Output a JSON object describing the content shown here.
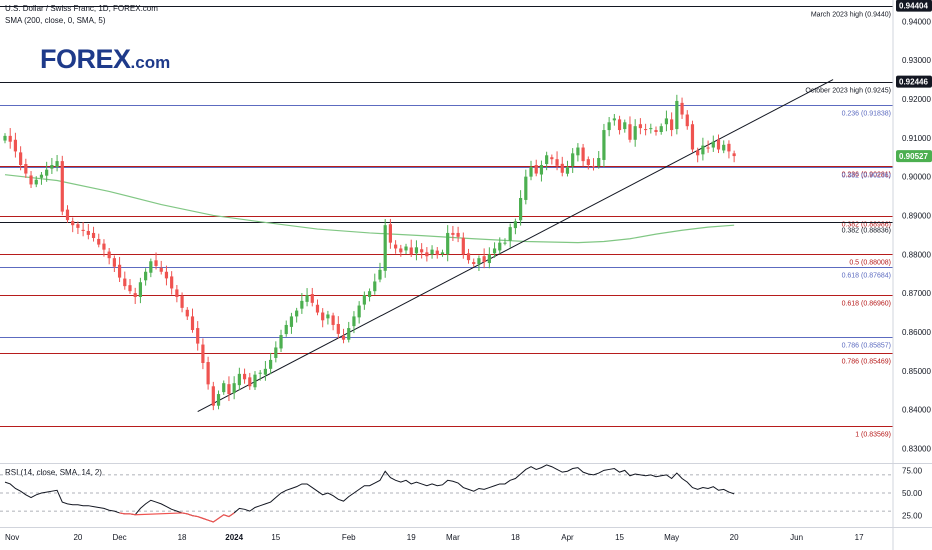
{
  "header": {
    "title": "U.S. Dollar / Swiss Franc, 1D, FOREX.com",
    "indicator": "SMA (200, close, 0, SMA, 5)",
    "rsi_label": "RSI (14, close, SMA, 14, 2)"
  },
  "logo": {
    "text": "FOREX",
    "suffix": ".com",
    "color": "#1e3a8a",
    "accent": "#7ac943"
  },
  "colors": {
    "up": "#26a69a",
    "up_bar": "#4caf50",
    "down": "#ef5350",
    "sma": "#81c784",
    "rsi": "#131722",
    "red_line": "#b71c1c",
    "blue_line": "#5c6bc0",
    "black_line": "#131722",
    "label_bg": "#131722",
    "price_tag": "#4caf50"
  },
  "chart_data": {
    "type": "candlestick",
    "y_range": [
      0.8265,
      0.9455
    ],
    "y_ticks": [
      {
        "value": 0.94,
        "label": "0.94000"
      },
      {
        "value": 0.93,
        "label": "0.93000"
      },
      {
        "value": 0.92,
        "label": "0.92000"
      },
      {
        "value": 0.91,
        "label": "0.91000"
      },
      {
        "value": 0.9,
        "label": "0.90000"
      },
      {
        "value": 0.89,
        "label": "0.89000"
      },
      {
        "value": 0.88,
        "label": "0.88000"
      },
      {
        "value": 0.87,
        "label": "0.87000"
      },
      {
        "value": 0.86,
        "label": "0.86000"
      },
      {
        "value": 0.85,
        "label": "0.85000"
      },
      {
        "value": 0.84,
        "label": "0.84000"
      },
      {
        "value": 0.83,
        "label": "0.83000"
      }
    ],
    "x_ticks": [
      {
        "i": 0,
        "label": "Nov",
        "bold": false
      },
      {
        "i": 14,
        "label": "20",
        "bold": false
      },
      {
        "i": 22,
        "label": "Dec",
        "bold": false
      },
      {
        "i": 34,
        "label": "18",
        "bold": false
      },
      {
        "i": 44,
        "label": "2024",
        "bold": true
      },
      {
        "i": 52,
        "label": "15",
        "bold": false
      },
      {
        "i": 66,
        "label": "Feb",
        "bold": false
      },
      {
        "i": 78,
        "label": "19",
        "bold": false
      },
      {
        "i": 86,
        "label": "Mar",
        "bold": false
      },
      {
        "i": 98,
        "label": "18",
        "bold": false
      },
      {
        "i": 108,
        "label": "Apr",
        "bold": false
      },
      {
        "i": 118,
        "label": "15",
        "bold": false
      },
      {
        "i": 128,
        "label": "May",
        "bold": false
      },
      {
        "i": 140,
        "label": "20",
        "bold": false
      },
      {
        "i": 152,
        "label": "Jun",
        "bold": false
      },
      {
        "i": 164,
        "label": "17",
        "bold": false
      }
    ],
    "n_slots": 173,
    "candle_count": 141,
    "closes": [
      0.9105,
      0.909,
      0.9065,
      0.903,
      0.9008,
      0.898,
      0.8992,
      0.9005,
      0.9018,
      0.903,
      0.904,
      0.891,
      0.8888,
      0.8875,
      0.8868,
      0.886,
      0.885,
      0.8842,
      0.8825,
      0.8812,
      0.879,
      0.8768,
      0.874,
      0.8718,
      0.8705,
      0.869,
      0.8728,
      0.8755,
      0.8782,
      0.877,
      0.8755,
      0.8738,
      0.8712,
      0.869,
      0.8662,
      0.864,
      0.8605,
      0.857,
      0.852,
      0.8465,
      0.841,
      0.844,
      0.8468,
      0.844,
      0.8468,
      0.8492,
      0.8478,
      0.846,
      0.849,
      0.8495,
      0.8505,
      0.8528,
      0.856,
      0.8592,
      0.8618,
      0.864,
      0.8655,
      0.868,
      0.8695,
      0.8675,
      0.865,
      0.863,
      0.8645,
      0.8618,
      0.8595,
      0.858,
      0.861,
      0.864,
      0.8668,
      0.8695,
      0.8705,
      0.873,
      0.876,
      0.8875,
      0.883,
      0.8815,
      0.8805,
      0.882,
      0.88,
      0.8818,
      0.8805,
      0.8795,
      0.8812,
      0.8798,
      0.8805,
      0.8855,
      0.885,
      0.8845,
      0.88,
      0.8785,
      0.8775,
      0.879,
      0.878,
      0.88,
      0.8815,
      0.883,
      0.883,
      0.887,
      0.8885,
      0.8945,
      0.9,
      0.9025,
      0.9008,
      0.903,
      0.9055,
      0.9045,
      0.9028,
      0.901,
      0.9025,
      0.906,
      0.9075,
      0.904,
      0.903,
      0.9025,
      0.9048,
      0.912,
      0.914,
      0.915,
      0.912,
      0.914,
      0.9095,
      0.913,
      0.9125,
      0.912,
      0.9125,
      0.9115,
      0.913,
      0.915,
      0.912,
      0.9195,
      0.916,
      0.913,
      0.907,
      0.9055,
      0.908,
      0.9075,
      0.909,
      0.907,
      0.9082,
      0.9065,
      0.9053
    ],
    "sma200": [
      [
        0,
        0.9005
      ],
      [
        10,
        0.899
      ],
      [
        20,
        0.8962
      ],
      [
        30,
        0.8928
      ],
      [
        40,
        0.89
      ],
      [
        50,
        0.8882
      ],
      [
        60,
        0.8865
      ],
      [
        70,
        0.8855
      ],
      [
        80,
        0.8848
      ],
      [
        90,
        0.884
      ],
      [
        100,
        0.8833
      ],
      [
        110,
        0.883
      ],
      [
        115,
        0.8833
      ],
      [
        120,
        0.884
      ],
      [
        125,
        0.8852
      ],
      [
        130,
        0.8862
      ],
      [
        135,
        0.887
      ],
      [
        140,
        0.8875
      ]
    ],
    "trendline": [
      [
        37,
        0.8395
      ],
      [
        159,
        0.925
      ]
    ],
    "rsi": {
      "range": [
        18,
        82
      ],
      "ticks": [
        {
          "value": 75,
          "label": "75.00"
        },
        {
          "value": 50,
          "label": "50.00"
        },
        {
          "value": 25,
          "label": "25.00"
        }
      ],
      "levels": [
        70,
        50,
        30
      ],
      "values": [
        62,
        60,
        55,
        52,
        48,
        45,
        48,
        50,
        51,
        52,
        53,
        40,
        38,
        37,
        37,
        36,
        36,
        35,
        34,
        33,
        31,
        30,
        28,
        27,
        27,
        26,
        33,
        38,
        42,
        40,
        38,
        35,
        32,
        30,
        28,
        27,
        25,
        24,
        22,
        20,
        18,
        22,
        26,
        24,
        28,
        33,
        32,
        30,
        34,
        36,
        38,
        40,
        45,
        50,
        53,
        55,
        57,
        60,
        60,
        56,
        52,
        48,
        50,
        47,
        43,
        41,
        46,
        50,
        54,
        58,
        58,
        61,
        64,
        74,
        67,
        64,
        62,
        64,
        60,
        62,
        60,
        58,
        60,
        58,
        59,
        64,
        63,
        61,
        56,
        54,
        52,
        55,
        54,
        56,
        58,
        60,
        60,
        64,
        66,
        71,
        76,
        79,
        76,
        78,
        81,
        79,
        76,
        73,
        74,
        77,
        78,
        73,
        71,
        70,
        72,
        75,
        76,
        77,
        73,
        75,
        69,
        71,
        70,
        69,
        70,
        68,
        69,
        70,
        66,
        72,
        66,
        62,
        56,
        54,
        56,
        55,
        57,
        53,
        54,
        51,
        49
      ]
    },
    "levels": [
      {
        "id": "mar23",
        "value": 0.944,
        "color": "#131722",
        "label": "March 2023 high (0.9440)",
        "label_color": "#131722"
      },
      {
        "id": "oct23",
        "value": 0.9245,
        "color": "#131722",
        "label": "October 2023 high (0.9245)",
        "label_color": "#131722"
      },
      {
        "id": "fib_b_236",
        "value": 0.91838,
        "color": "#5c6bc0",
        "label": "0.236 (0.91838)",
        "label_color": "#5c6bc0"
      },
      {
        "id": "fib_r_236",
        "value": 0.90281,
        "color": "#b71c1c",
        "label": "0.236 (0.90281)",
        "label_color": "#b71c1c"
      },
      {
        "id": "fib_b_382",
        "value": 0.90236,
        "color": "#5c6bc0",
        "label": "0.382 (0.90236)",
        "label_color": "#5c6bc0"
      },
      {
        "id": "fib_r_382",
        "value": 0.88986,
        "color": "#b71c1c",
        "label": "0.382 (0.88986)",
        "label_color": "#b71c1c"
      },
      {
        "id": "blk_382",
        "value": 0.88836,
        "color": "#131722",
        "label": "0.382 (0.88836)",
        "label_color": "#131722"
      },
      {
        "id": "fib_r_5",
        "value": 0.88008,
        "color": "#b71c1c",
        "label": "0.5 (0.88008)",
        "label_color": "#b71c1c"
      },
      {
        "id": "fib_b_618",
        "value": 0.87684,
        "color": "#5c6bc0",
        "label": "0.618 (0.87684)",
        "label_color": "#5c6bc0"
      },
      {
        "id": "fib_r_618",
        "value": 0.8696,
        "color": "#b71c1c",
        "label": "0.618 (0.86960)",
        "label_color": "#b71c1c"
      },
      {
        "id": "fib_b_786",
        "value": 0.85857,
        "color": "#5c6bc0",
        "label": "0.786 (0.85857)",
        "label_color": "#5c6bc0"
      },
      {
        "id": "fib_r_786",
        "value": 0.85469,
        "color": "#b71c1c",
        "label": "0.786 (0.85469)",
        "label_color": "#b71c1c"
      },
      {
        "id": "fib_1",
        "value": 0.83569,
        "color": "#b71c1c",
        "label": "1 (0.83569)",
        "label_color": "#b71c1c"
      }
    ],
    "price_tags": [
      {
        "value": 0.94404,
        "label": "0.94404",
        "bg": "#131722"
      },
      {
        "value": 0.92446,
        "label": "0.92446",
        "bg": "#131722"
      },
      {
        "value": 0.90527,
        "label": "0.90527",
        "bg": "#4caf50"
      }
    ]
  }
}
